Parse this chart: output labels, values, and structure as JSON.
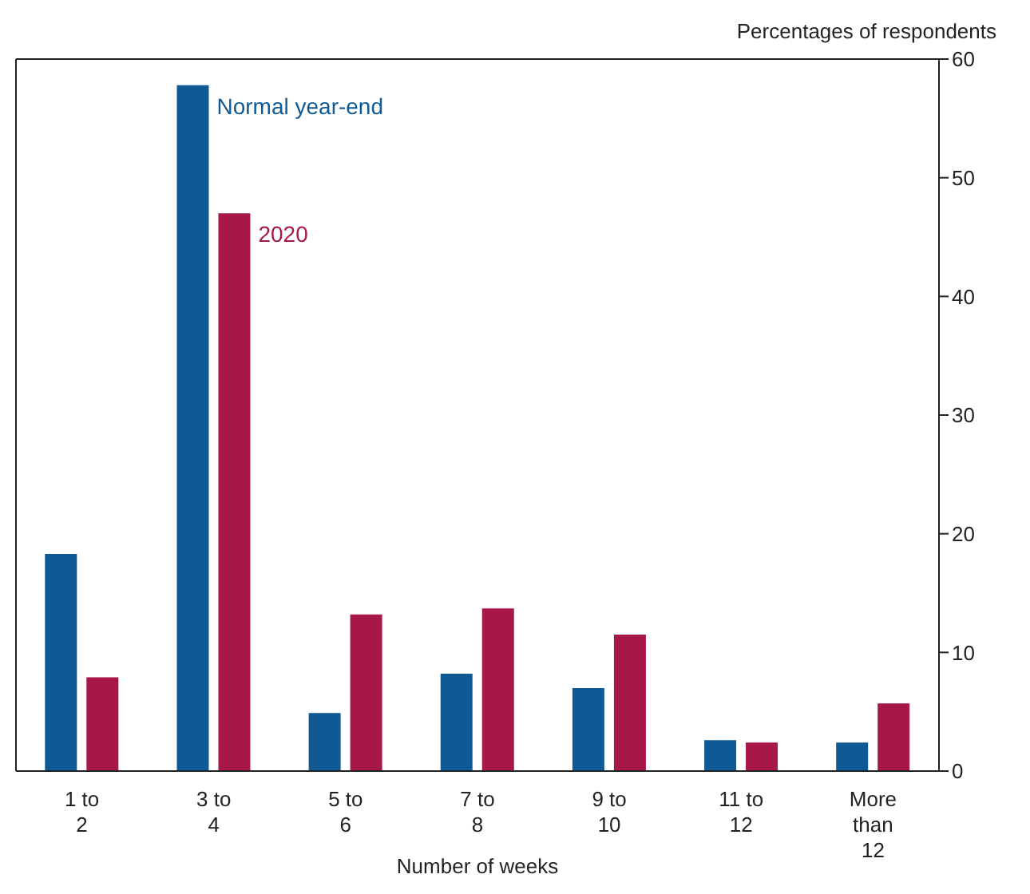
{
  "chart_data": {
    "type": "bar",
    "ylabel": "Percentages of respondents",
    "xlabel": "Number of weeks",
    "categories": [
      "1 to 2",
      "3 to 4",
      "5 to 6",
      "7 to 8",
      "9 to 10",
      "11 to 12",
      "More than 12"
    ],
    "series": [
      {
        "name": "Normal year-end",
        "color": "#0f5a94",
        "values": [
          18.3,
          57.8,
          4.9,
          8.2,
          7.0,
          2.6,
          2.4
        ]
      },
      {
        "name": "2020",
        "color": "#a8174a",
        "values": [
          7.9,
          47.0,
          13.2,
          13.7,
          11.5,
          2.4,
          5.7
        ]
      }
    ],
    "ylim": [
      0,
      60
    ],
    "yticks": [
      0,
      10,
      20,
      30,
      40,
      50,
      60
    ],
    "grid": false,
    "legend": false
  }
}
